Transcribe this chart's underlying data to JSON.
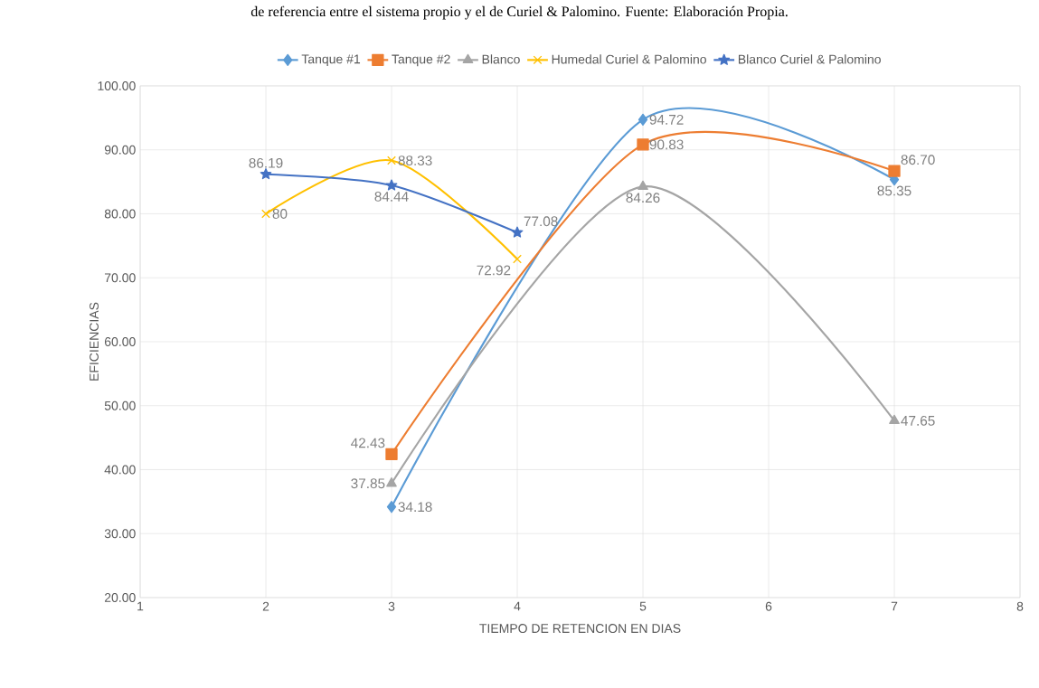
{
  "chart_data": {
    "type": "line",
    "xlabel": "TIEMPO DE RETENCION EN DIAS",
    "ylabel": "EFICIENCIAS",
    "annotations": [
      "de referencia entre el sistema propio y el de Curiel & Palomino. Fuente: Elaboración Propia."
    ],
    "xlim": [
      1,
      8
    ],
    "xticks": [
      1,
      2,
      3,
      4,
      5,
      6,
      7,
      8
    ],
    "ylim": [
      20,
      100
    ],
    "yticks": [
      {
        "value": 20,
        "label": "20.00"
      },
      {
        "value": 30,
        "label": "30.00"
      },
      {
        "value": 40,
        "label": "40.00"
      },
      {
        "value": 50,
        "label": "50.00"
      },
      {
        "value": 60,
        "label": "60.00"
      },
      {
        "value": 70,
        "label": "70.00"
      },
      {
        "value": 80,
        "label": "80.00"
      },
      {
        "value": 90,
        "label": "90.00"
      },
      {
        "value": 100,
        "label": "100.00"
      }
    ],
    "grid": true,
    "legend": "top",
    "line_style": "solid",
    "series": [
      {
        "name": "Tanque #1",
        "color": "#5b9bd5",
        "marker": "diamond",
        "x": [
          3,
          5,
          7
        ],
        "values": [
          34.18,
          94.72,
          85.35
        ],
        "value_labels": [
          "34.18",
          "94.72",
          "85.35"
        ]
      },
      {
        "name": "Tanque #2",
        "color": "#ed7d31",
        "marker": "square",
        "x": [
          3,
          5,
          7
        ],
        "values": [
          42.43,
          90.83,
          86.7
        ],
        "value_labels": [
          "42.43",
          "90.83",
          "86.70"
        ]
      },
      {
        "name": "Blanco",
        "color": "#a5a5a5",
        "marker": "triangle",
        "x": [
          3,
          5,
          7
        ],
        "values": [
          37.85,
          84.26,
          47.65
        ],
        "value_labels": [
          "37.85",
          "84.26",
          "47.65"
        ]
      },
      {
        "name": "Humedal Curiel & Palomino",
        "color": "#ffc000",
        "marker": "cross",
        "x": [
          2,
          3,
          4
        ],
        "values": [
          80,
          88.33,
          72.92
        ],
        "value_labels": [
          "80",
          "88.33",
          "72.92"
        ]
      },
      {
        "name": "Blanco Curiel & Palomino",
        "color": "#4472c4",
        "marker": "star",
        "x": [
          2,
          3,
          4
        ],
        "values": [
          86.19,
          84.44,
          77.08
        ],
        "value_labels": [
          "86.19",
          "84.44",
          "77.08"
        ]
      }
    ]
  }
}
